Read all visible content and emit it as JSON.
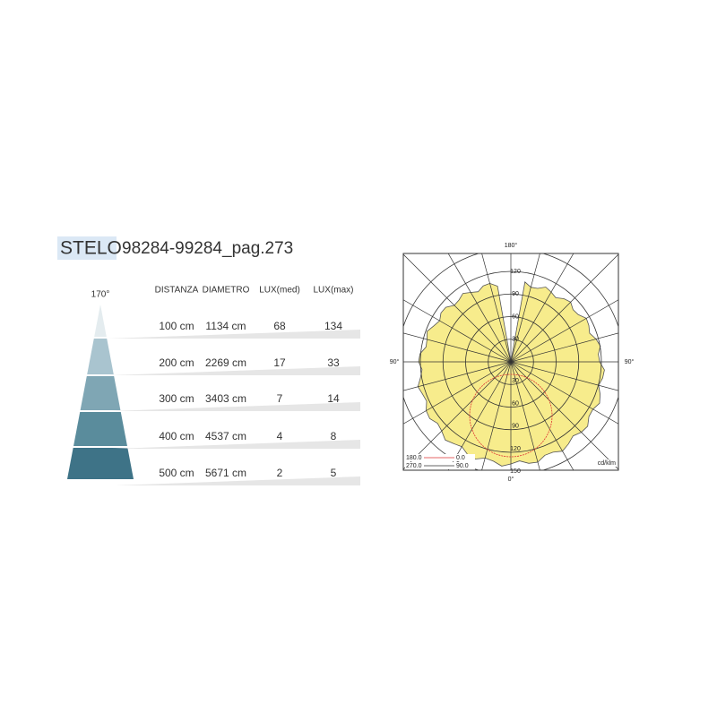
{
  "header": {
    "name": "STELO",
    "code": "98284-99284_pag.273"
  },
  "beam": {
    "angle": "170°"
  },
  "table": {
    "headers": [
      "DISTANZA",
      "DIAMETRO",
      "LUX(med)",
      "LUX(max)"
    ],
    "rows": [
      [
        "100 cm",
        "1134 cm",
        "68",
        "134"
      ],
      [
        "200 cm",
        "2269 cm",
        "17",
        "33"
      ],
      [
        "300 cm",
        "3403 cm",
        "7",
        "14"
      ],
      [
        "400 cm",
        "4537 cm",
        "4",
        "8"
      ],
      [
        "500 cm",
        "5671 cm",
        "2",
        "5"
      ]
    ]
  },
  "polar": {
    "top": "180°",
    "left": "90°",
    "right": "90°",
    "bottom": "0°",
    "upper_rings": [
      "120",
      "90",
      "60",
      "30"
    ],
    "lower_rings": [
      "30",
      "60",
      "90",
      "120",
      "150"
    ],
    "legend": [
      [
        "180.0",
        "0.0"
      ],
      [
        "270.0",
        "90.0"
      ]
    ],
    "unit": "cd/klm"
  }
}
